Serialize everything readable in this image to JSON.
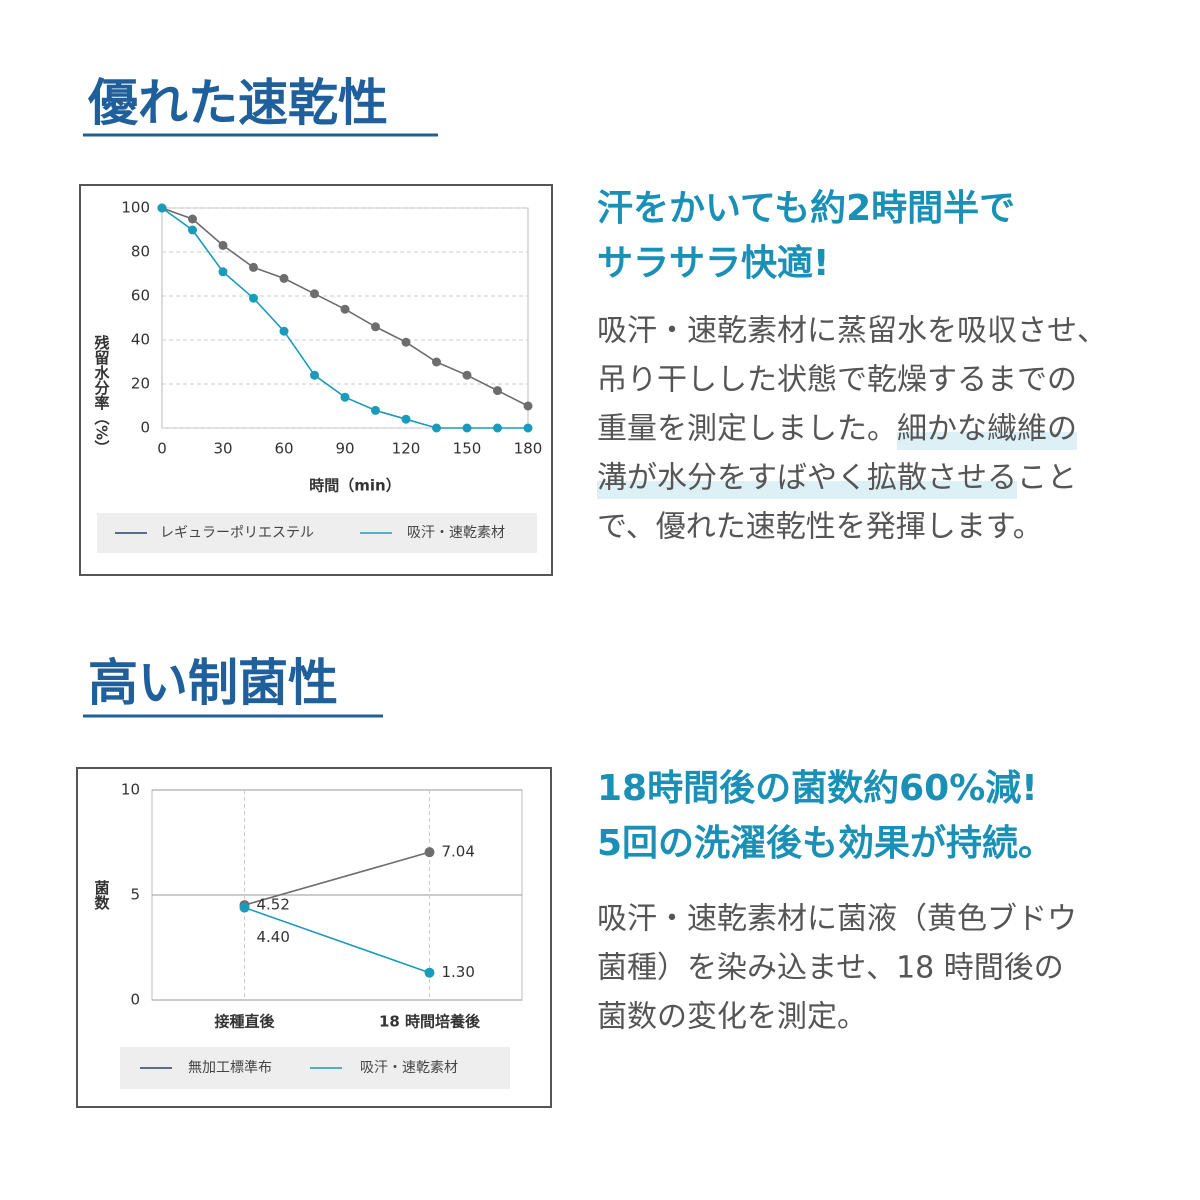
{
  "sections": [
    {
      "heading": "優れた速乾性",
      "subheading": [
        "汗をかいても約2時間半で",
        "サラサラ快適!"
      ],
      "body": [
        [
          {
            "text": "吸汗・速乾素材に蒸留水を吸収させ、",
            "highlight": false
          }
        ],
        [
          {
            "text": "吊り干しした状態で乾燥するまでの",
            "highlight": false
          }
        ],
        [
          {
            "text": "重量を測定しました。",
            "highlight": false
          },
          {
            "text": "細かな繊維の",
            "highlight": true
          }
        ],
        [
          {
            "text": "溝が水分をすばやく拡散させる",
            "highlight": true
          },
          {
            "text": "こと",
            "highlight": false
          }
        ],
        [
          {
            "text": "で、優れた速乾性を発揮します。",
            "highlight": false
          }
        ]
      ]
    },
    {
      "heading": "高い制菌性",
      "subheading": [
        "18時間後の菌数約60%減!",
        "5回の洗濯後も効果が持続。"
      ],
      "body": [
        [
          {
            "text": "吸汗・速乾素材に菌液（黄色ブドウ",
            "highlight": false
          }
        ],
        [
          {
            "text": "菌種）を染み込ませ、18 時間後の",
            "highlight": false
          }
        ],
        [
          {
            "text": "菌数の変化を測定。",
            "highlight": false
          }
        ]
      ]
    }
  ],
  "chart_data": [
    {
      "type": "line",
      "xlabel": "時間（min）",
      "ylabel": "残留水分率（%）",
      "x": [
        0,
        15,
        30,
        45,
        60,
        75,
        90,
        105,
        120,
        135,
        150,
        165,
        180
      ],
      "xlim": [
        0,
        180
      ],
      "xticks": [
        0,
        30,
        60,
        90,
        120,
        150,
        180
      ],
      "ylim": [
        0,
        100
      ],
      "yticks": [
        0,
        20,
        40,
        60,
        80,
        100
      ],
      "grid": true,
      "series": [
        {
          "name": "レギュラーポリエステル",
          "color": "#6d6d6d",
          "values": [
            100,
            95,
            83,
            73,
            68,
            61,
            54,
            46,
            39,
            30,
            24,
            17,
            10
          ]
        },
        {
          "name": "吸汗・速乾素材",
          "color": "#1a9bbb",
          "values": [
            100,
            90,
            71,
            59,
            44,
            24,
            14,
            8,
            4,
            0,
            0,
            0,
            0
          ]
        }
      ]
    },
    {
      "type": "line",
      "ylabel": "菌数",
      "categories": [
        "接種直後",
        "18 時間培養後"
      ],
      "ylim": [
        0,
        10
      ],
      "yticks": [
        0,
        5,
        10
      ],
      "grid": true,
      "series": [
        {
          "name": "無加工標準布",
          "color": "#6d6d6d",
          "values": [
            4.52,
            7.04
          ],
          "value_labels": [
            "4.52",
            "7.04"
          ]
        },
        {
          "name": "吸汗・速乾素材",
          "color": "#1a9bbb",
          "values": [
            4.4,
            1.3
          ],
          "value_labels": [
            "4.40",
            "1.30"
          ]
        }
      ]
    }
  ]
}
